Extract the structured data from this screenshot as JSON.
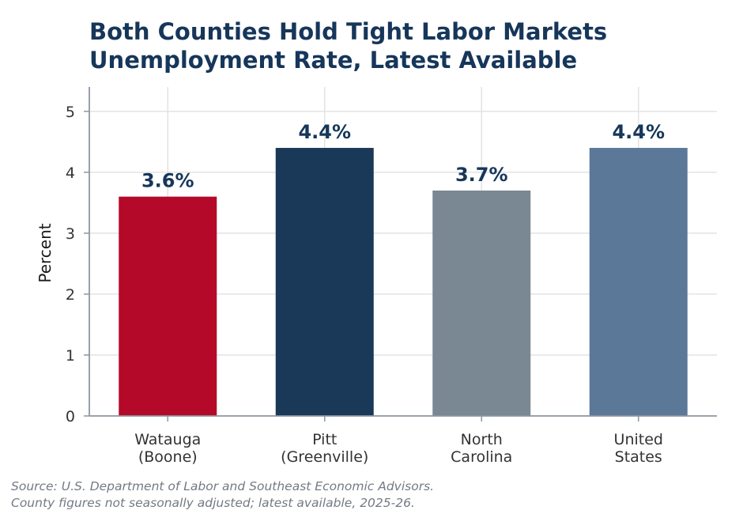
{
  "chart_data": {
    "type": "bar",
    "title": [
      "Both Counties Hold Tight Labor Markets",
      "Unemployment Rate, Latest Available"
    ],
    "ylabel": "Percent",
    "xlabel": "",
    "ylim": [
      0,
      5.4
    ],
    "yticks": [
      0,
      1,
      2,
      3,
      4,
      5
    ],
    "grid": true,
    "categories": [
      [
        "Watauga",
        "(Boone)"
      ],
      [
        "Pitt",
        "(Greenville)"
      ],
      [
        "North",
        "Carolina"
      ],
      [
        "United",
        "States"
      ]
    ],
    "values": [
      3.6,
      4.4,
      3.7,
      4.4
    ],
    "data_labels": [
      "3.6%",
      "4.4%",
      "3.7%",
      "4.4%"
    ],
    "colors": [
      "#b5092a",
      "#1a3857",
      "#7a8894",
      "#5b7898"
    ]
  },
  "source_note": [
    "Source: U.S. Department of Labor and Southeast Economic Advisors.",
    "County figures not seasonally adjusted; latest available, 2025-26."
  ]
}
